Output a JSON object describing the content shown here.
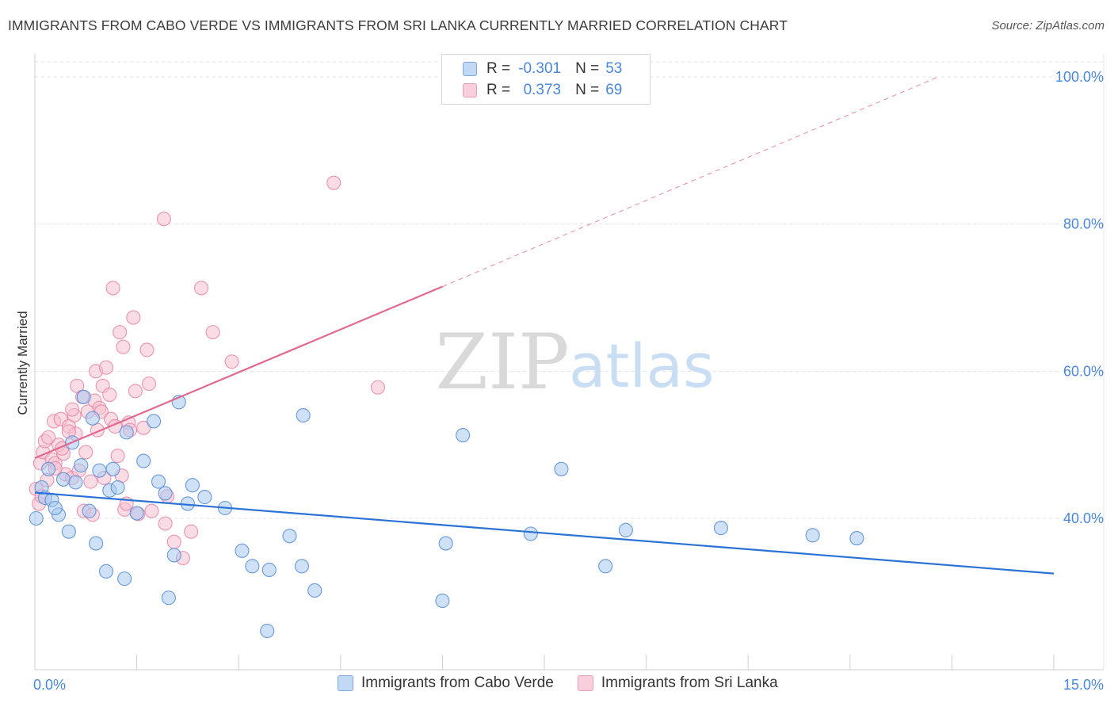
{
  "header": {
    "title": "IMMIGRANTS FROM CABO VERDE VS IMMIGRANTS FROM SRI LANKA CURRENTLY MARRIED CORRELATION CHART",
    "source": "Source: ZipAtlas.com"
  },
  "legend": {
    "rows": [
      {
        "r_label": "R =",
        "r_value": "-0.301",
        "n_label": "N =",
        "n_value": "53"
      },
      {
        "r_label": "R =",
        "r_value": "0.373",
        "n_label": "N =",
        "n_value": "69"
      }
    ]
  },
  "watermark": {
    "zip": "ZIP",
    "atlas": "atlas"
  },
  "colors": {
    "blue_fill": "#a8c8f0",
    "blue_stroke": "#5a8fd6",
    "blue_line": "#2a72d6",
    "pink_fill": "#f6bfd0",
    "pink_stroke": "#e88aa8",
    "pink_line": "#e06a92",
    "axis_text": "#4a86d9",
    "grid": "#e3e3e3"
  },
  "chart_data": {
    "type": "scatter",
    "title": "IMMIGRANTS FROM CABO VERDE VS IMMIGRANTS FROM SRI LANKA CURRENTLY MARRIED CORRELATION CHART",
    "xlabel": "",
    "ylabel": "Currently Married",
    "xlim": [
      0,
      15
    ],
    "ylim": [
      20,
      102
    ],
    "x_tick_labels": [
      "0.0%",
      "15.0%"
    ],
    "y_ticks": [
      40,
      60,
      80,
      100
    ],
    "y_tick_labels": [
      "40.0%",
      "60.0%",
      "80.0%",
      "100.0%"
    ],
    "grid": true,
    "legend_position": "top-center",
    "series": [
      {
        "name": "Immigrants from Cabo Verde",
        "color": "blue",
        "trend": {
          "x0": 0,
          "y0": 43.5,
          "x1": 15,
          "y1": 32.5
        },
        "points": [
          [
            0.02,
            40.0
          ],
          [
            0.1,
            44.2
          ],
          [
            0.15,
            42.8
          ],
          [
            0.2,
            46.7
          ],
          [
            0.25,
            42.5
          ],
          [
            0.35,
            40.5
          ],
          [
            0.42,
            45.3
          ],
          [
            0.5,
            38.2
          ],
          [
            0.55,
            50.3
          ],
          [
            0.6,
            44.9
          ],
          [
            0.68,
            47.2
          ],
          [
            0.72,
            56.5
          ],
          [
            0.8,
            41.0
          ],
          [
            0.85,
            53.6
          ],
          [
            0.9,
            36.6
          ],
          [
            0.95,
            46.5
          ],
          [
            1.05,
            32.8
          ],
          [
            1.1,
            43.8
          ],
          [
            1.15,
            46.7
          ],
          [
            1.22,
            44.2
          ],
          [
            1.32,
            31.8
          ],
          [
            1.35,
            51.7
          ],
          [
            1.5,
            40.7
          ],
          [
            1.6,
            47.8
          ],
          [
            1.75,
            53.2
          ],
          [
            1.82,
            45.0
          ],
          [
            1.92,
            43.4
          ],
          [
            1.97,
            29.2
          ],
          [
            2.05,
            35.0
          ],
          [
            2.12,
            55.8
          ],
          [
            2.25,
            42.0
          ],
          [
            2.32,
            44.5
          ],
          [
            2.5,
            42.9
          ],
          [
            2.8,
            41.4
          ],
          [
            3.05,
            35.6
          ],
          [
            3.2,
            33.5
          ],
          [
            3.42,
            24.7
          ],
          [
            3.45,
            33.0
          ],
          [
            3.75,
            37.6
          ],
          [
            3.93,
            33.5
          ],
          [
            3.95,
            54.0
          ],
          [
            4.12,
            30.2
          ],
          [
            6.0,
            28.8
          ],
          [
            6.05,
            36.6
          ],
          [
            6.3,
            51.3
          ],
          [
            7.3,
            37.9
          ],
          [
            7.75,
            46.7
          ],
          [
            8.4,
            33.5
          ],
          [
            8.7,
            38.4
          ],
          [
            10.1,
            38.7
          ],
          [
            11.45,
            37.7
          ],
          [
            12.1,
            37.3
          ],
          [
            0.3,
            41.4
          ]
        ]
      },
      {
        "name": "Immigrants from Sri Lanka",
        "color": "pink",
        "trend": {
          "x0": 0,
          "y0": 48.2,
          "x1": 6.0,
          "y1": 71.5,
          "dash_x1": 13.3,
          "dash_y1": 100.0
        },
        "points": [
          [
            0.02,
            44.0
          ],
          [
            0.06,
            42.0
          ],
          [
            0.08,
            47.5
          ],
          [
            0.12,
            49.0
          ],
          [
            0.15,
            50.5
          ],
          [
            0.2,
            51.0
          ],
          [
            0.25,
            48.0
          ],
          [
            0.28,
            53.2
          ],
          [
            0.3,
            47.5
          ],
          [
            0.35,
            50.0
          ],
          [
            0.38,
            53.5
          ],
          [
            0.42,
            48.8
          ],
          [
            0.45,
            46.0
          ],
          [
            0.5,
            52.5
          ],
          [
            0.55,
            45.5
          ],
          [
            0.58,
            54.0
          ],
          [
            0.6,
            51.5
          ],
          [
            0.62,
            58.0
          ],
          [
            0.65,
            46.5
          ],
          [
            0.7,
            56.5
          ],
          [
            0.72,
            41.0
          ],
          [
            0.75,
            49.0
          ],
          [
            0.78,
            54.5
          ],
          [
            0.82,
            45.0
          ],
          [
            0.85,
            40.5
          ],
          [
            0.88,
            56.0
          ],
          [
            0.9,
            60.0
          ],
          [
            0.92,
            52.0
          ],
          [
            0.95,
            55.0
          ],
          [
            0.98,
            54.5
          ],
          [
            1.0,
            58.0
          ],
          [
            1.02,
            45.5
          ],
          [
            1.05,
            60.5
          ],
          [
            1.1,
            56.8
          ],
          [
            1.12,
            53.5
          ],
          [
            1.15,
            71.3
          ],
          [
            1.18,
            52.5
          ],
          [
            1.22,
            48.5
          ],
          [
            1.25,
            65.3
          ],
          [
            1.28,
            45.8
          ],
          [
            1.3,
            63.3
          ],
          [
            1.32,
            41.2
          ],
          [
            1.35,
            42.0
          ],
          [
            1.38,
            53.0
          ],
          [
            1.4,
            52.0
          ],
          [
            1.45,
            67.3
          ],
          [
            1.48,
            57.3
          ],
          [
            1.52,
            40.6
          ],
          [
            1.6,
            52.3
          ],
          [
            1.65,
            62.9
          ],
          [
            1.68,
            58.3
          ],
          [
            1.72,
            41.0
          ],
          [
            1.9,
            80.7
          ],
          [
            1.92,
            39.3
          ],
          [
            1.95,
            43.0
          ],
          [
            2.05,
            36.8
          ],
          [
            2.18,
            34.6
          ],
          [
            2.3,
            38.2
          ],
          [
            2.45,
            71.3
          ],
          [
            2.62,
            65.3
          ],
          [
            2.9,
            61.3
          ],
          [
            4.4,
            85.6
          ],
          [
            5.05,
            57.8
          ],
          [
            0.4,
            49.5
          ],
          [
            0.5,
            51.8
          ],
          [
            0.18,
            45.2
          ],
          [
            0.1,
            43.0
          ],
          [
            0.3,
            46.8
          ],
          [
            0.55,
            54.8
          ]
        ]
      }
    ]
  },
  "bottom_legend": {
    "items": [
      "Immigrants from Cabo Verde",
      "Immigrants from Sri Lanka"
    ]
  }
}
